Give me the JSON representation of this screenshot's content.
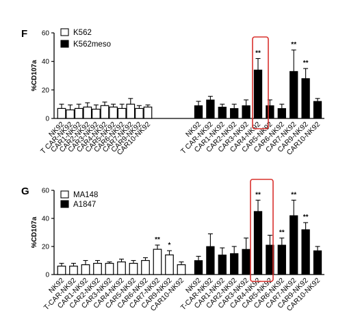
{
  "chart_data": [
    {
      "type": "bar",
      "panel_label": "F",
      "ylabel": "%CD107a",
      "ylim": [
        0,
        60
      ],
      "yticks": [
        0,
        20,
        40,
        60
      ],
      "categories": [
        "NK92",
        "T CAR-NK92",
        "CAR1-NK92",
        "CAR2-NK92",
        "CAR3-NK92",
        "CAR4-NK92",
        "CAR5-NK92",
        "CAR6-NK92",
        "CAR7-NK92",
        "CAR9-NK92",
        "CAR10-NK92"
      ],
      "series": [
        {
          "name": "K562",
          "fill": "#ffffff",
          "values": [
            7,
            6,
            7,
            8,
            6.5,
            9,
            8,
            7,
            10,
            7,
            8
          ],
          "errors": [
            3,
            3.5,
            3,
            3,
            3,
            2.5,
            2,
            3,
            4,
            2,
            1.5
          ],
          "sig": [
            "",
            "",
            "",
            "",
            "",
            "",
            "",
            "",
            "",
            "",
            ""
          ]
        },
        {
          "name": "K562meso",
          "fill": "#000000",
          "values": [
            9,
            13,
            8,
            7,
            9,
            34,
            9,
            7,
            33,
            28,
            12
          ],
          "errors": [
            3,
            2.5,
            2,
            3,
            4,
            8,
            4,
            3,
            15,
            7,
            2
          ],
          "sig": [
            "",
            "",
            "",
            "",
            "",
            "**",
            "",
            "",
            "**",
            "**",
            ""
          ]
        }
      ],
      "highlight": {
        "series": "K562meso",
        "category": "CAR4-NK92",
        "color": "#d9302c"
      }
    },
    {
      "type": "bar",
      "panel_label": "G",
      "ylabel": "%CD107a",
      "ylim": [
        0,
        60
      ],
      "yticks": [
        0,
        20,
        40,
        60
      ],
      "categories": [
        "NK92",
        "T-CAR-NK92",
        "CAR1-NK92",
        "CAR2-NK92",
        "CAR3-NK92",
        "CAR4-NK92",
        "CAR5-NK92",
        "CAR6-NK92",
        "CAR7-NK92",
        "CAR9-NK92",
        "CAR10-NK92"
      ],
      "series": [
        {
          "name": "MA148",
          "fill": "#ffffff",
          "values": [
            6,
            6,
            7,
            8,
            8,
            9,
            8,
            10,
            18,
            14,
            7
          ],
          "errors": [
            2,
            2,
            3,
            2,
            1,
            2,
            2,
            2,
            3,
            3,
            2
          ],
          "sig": [
            "",
            "",
            "",
            "",
            "",
            "",
            "",
            "",
            "**",
            "*",
            ""
          ]
        },
        {
          "name": "A1847",
          "fill": "#000000",
          "values": [
            10,
            20,
            14,
            15,
            18,
            45,
            21,
            21,
            42,
            32,
            17
          ],
          "errors": [
            3,
            9,
            5,
            5,
            8,
            8,
            7,
            5,
            11,
            5,
            3
          ],
          "sig": [
            "",
            "",
            "",
            "",
            "",
            "**",
            "",
            "**",
            "**",
            "**",
            ""
          ]
        }
      ],
      "highlight": {
        "series": "A1847",
        "category": "CAR4-NK92",
        "color": "#d9302c"
      }
    }
  ]
}
